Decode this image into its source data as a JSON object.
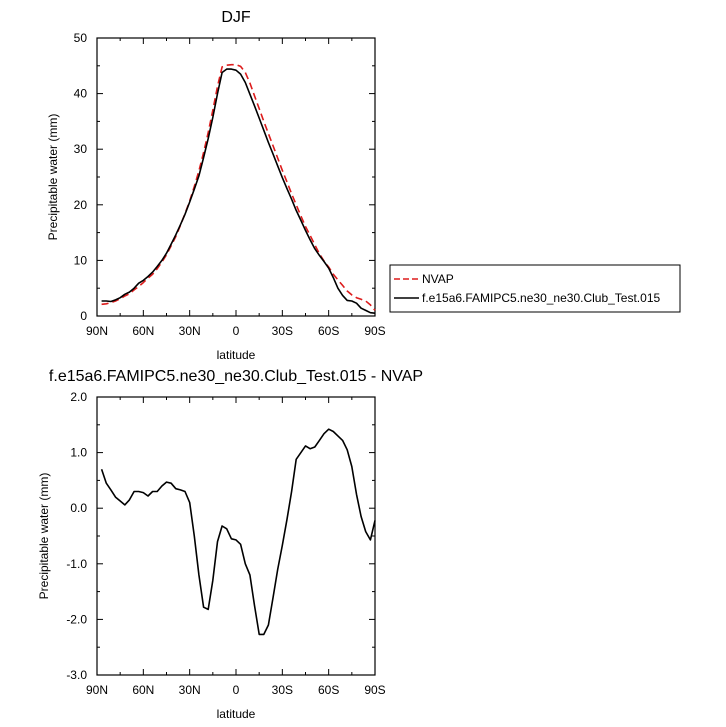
{
  "chart_data": [
    {
      "type": "line",
      "title": "DJF",
      "xlabel": "latitude",
      "ylabel": "Precipitable water (mm)",
      "xlim": [
        90,
        -90
      ],
      "ylim": [
        0,
        50
      ],
      "x_ticks": [
        90,
        60,
        30,
        0,
        -30,
        -60,
        -90
      ],
      "x_tick_labels": [
        "90N",
        "60N",
        "30N",
        "0",
        "30S",
        "60S",
        "90S"
      ],
      "y_ticks": [
        0,
        10,
        20,
        30,
        40,
        50
      ],
      "y_tick_labels": [
        "0",
        "10",
        "20",
        "30",
        "40",
        "50"
      ],
      "legend_position": "bottom-right outside",
      "series": [
        {
          "name": "NVAP",
          "color": "#dd1c1c",
          "dash": "dashed",
          "x": [
            87,
            84,
            81,
            78,
            75,
            72,
            69,
            66,
            63,
            60,
            57,
            54,
            51,
            48,
            45,
            42,
            39,
            36,
            33,
            30,
            27,
            24,
            21,
            18,
            15,
            12,
            9,
            6,
            3,
            0,
            -3,
            -6,
            -9,
            -12,
            -15,
            -18,
            -21,
            -24,
            -27,
            -30,
            -33,
            -36,
            -39,
            -42,
            -45,
            -48,
            -51,
            -54,
            -57,
            -60,
            -63,
            -66,
            -69,
            -72,
            -75,
            -78,
            -81,
            -84,
            -87,
            -90
          ],
          "y": [
            2.1,
            2.2,
            2.4,
            2.7,
            3.1,
            3.6,
            4.0,
            4.7,
            5.3,
            6.0,
            6.8,
            7.5,
            8.5,
            9.7,
            11.0,
            12.6,
            14.3,
            16.3,
            18.4,
            20.7,
            23.3,
            26.1,
            29.4,
            33.0,
            37.0,
            41.3,
            44.8,
            45.1,
            45.2,
            45.2,
            44.9,
            43.8,
            41.9,
            39.6,
            37.3,
            35.0,
            32.8,
            30.6,
            28.4,
            26.2,
            24.1,
            22.0,
            20.0,
            18.0,
            16.1,
            14.5,
            12.8,
            11.2,
            9.9,
            8.8,
            7.5,
            6.5,
            5.5,
            4.5,
            3.8,
            3.3,
            3.0,
            2.7,
            2.0,
            1.0
          ]
        },
        {
          "name": "f.e15a6.FAMIPC5.ne30_ne30.Club_Test.015",
          "color": "#000000",
          "dash": "solid",
          "x": [
            87,
            84,
            81,
            78,
            75,
            72,
            69,
            66,
            63,
            60,
            57,
            54,
            51,
            48,
            45,
            42,
            39,
            36,
            33,
            30,
            27,
            24,
            21,
            18,
            15,
            12,
            9,
            6,
            3,
            0,
            -3,
            -6,
            -9,
            -12,
            -15,
            -18,
            -21,
            -24,
            -27,
            -30,
            -33,
            -36,
            -39,
            -42,
            -45,
            -48,
            -51,
            -54,
            -57,
            -60,
            -63,
            -66,
            -69,
            -72,
            -75,
            -78,
            -81,
            -84,
            -87,
            -90
          ],
          "y": [
            2.7,
            2.7,
            2.6,
            2.9,
            3.3,
            3.9,
            4.3,
            5.0,
            5.9,
            6.4,
            7.1,
            7.9,
            8.9,
            10.0,
            11.3,
            12.9,
            14.6,
            16.4,
            18.3,
            20.5,
            22.8,
            25.2,
            28.5,
            31.9,
            35.7,
            40.0,
            43.8,
            44.4,
            44.4,
            44.2,
            43.5,
            42.0,
            39.9,
            37.8,
            35.6,
            33.4,
            31.2,
            29.1,
            27.0,
            24.9,
            22.9,
            21.0,
            19.0,
            17.2,
            15.4,
            13.7,
            12.1,
            10.9,
            9.8,
            8.6,
            6.9,
            5.0,
            3.7,
            2.8,
            2.7,
            2.3,
            1.4,
            1.0,
            0.6,
            0.5
          ]
        }
      ]
    },
    {
      "type": "line",
      "title": "f.e15a6.FAMIPC5.ne30_ne30.Club_Test.015 - NVAP",
      "xlabel": "latitude",
      "ylabel": "Precipitable water (mm)",
      "xlim": [
        90,
        -90
      ],
      "ylim": [
        -3.0,
        2.0
      ],
      "x_ticks": [
        90,
        60,
        30,
        0,
        -30,
        -60,
        -90
      ],
      "x_tick_labels": [
        "90N",
        "60N",
        "30N",
        "0",
        "30S",
        "60S",
        "90S"
      ],
      "y_ticks": [
        -3.0,
        -2.0,
        -1.0,
        0.0,
        1.0,
        2.0
      ],
      "y_tick_labels": [
        "-3.0",
        "-2.0",
        "-1.0",
        "0.0",
        "1.0",
        "2.0"
      ],
      "series": [
        {
          "color": "#000000",
          "dash": "solid",
          "x": [
            87,
            84,
            81,
            78,
            75,
            72,
            69,
            66,
            63,
            60,
            57,
            54,
            51,
            48,
            45,
            42,
            39,
            36,
            33,
            30,
            27,
            24,
            21,
            18,
            15,
            12,
            9,
            6,
            3,
            0,
            -3,
            -6,
            -9,
            -12,
            -15,
            -18,
            -21,
            -24,
            -27,
            -30,
            -33,
            -36,
            -39,
            -42,
            -45,
            -48,
            -51,
            -54,
            -57,
            -60,
            -63,
            -66,
            -69,
            -72,
            -75,
            -78,
            -81,
            -84,
            -87,
            -90
          ],
          "y": [
            0.7,
            0.45,
            0.33,
            0.2,
            0.13,
            0.06,
            0.15,
            0.3,
            0.3,
            0.28,
            0.22,
            0.3,
            0.3,
            0.4,
            0.47,
            0.45,
            0.35,
            0.33,
            0.3,
            0.1,
            -0.5,
            -1.2,
            -1.78,
            -1.82,
            -1.3,
            -0.6,
            -0.32,
            -0.37,
            -0.55,
            -0.57,
            -0.65,
            -1.0,
            -1.2,
            -1.75,
            -2.27,
            -2.27,
            -2.1,
            -1.6,
            -1.1,
            -0.67,
            -0.2,
            0.3,
            0.88,
            1.0,
            1.12,
            1.07,
            1.1,
            1.22,
            1.34,
            1.42,
            1.38,
            1.3,
            1.22,
            1.05,
            0.75,
            0.25,
            -0.15,
            -0.42,
            -0.57,
            -0.22
          ]
        }
      ]
    }
  ]
}
